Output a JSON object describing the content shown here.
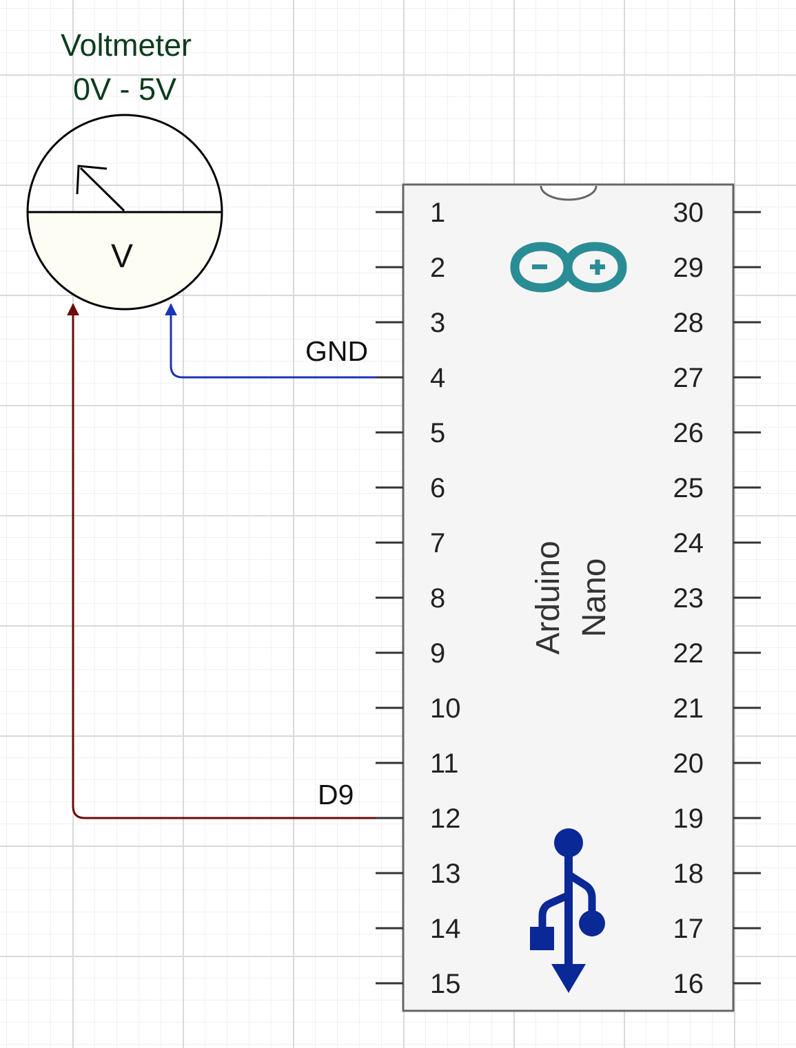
{
  "voltmeter": {
    "title_line1": "Voltmeter",
    "title_line2": "0V - 5V",
    "symbol": "V",
    "title_color": "#0b3d1c"
  },
  "chip": {
    "label_line1": "Arduino",
    "label_line2": "Nano",
    "logo_icon": "arduino-infinity-logo-icon",
    "logo_color": "#2a8c94",
    "usb_icon": "usb-icon",
    "usb_color": "#0a2896",
    "left_pins": [
      "1",
      "2",
      "3",
      "4",
      "5",
      "6",
      "7",
      "8",
      "9",
      "10",
      "11",
      "12",
      "13",
      "14",
      "15"
    ],
    "right_pins": [
      "30",
      "29",
      "28",
      "27",
      "26",
      "25",
      "24",
      "23",
      "22",
      "21",
      "20",
      "19",
      "18",
      "17",
      "16"
    ]
  },
  "wires": {
    "gnd": {
      "label": "GND",
      "color": "#1a34b8",
      "pin": "4"
    },
    "d9": {
      "label": "D9",
      "color": "#6b0a0a",
      "pin": "12"
    }
  }
}
